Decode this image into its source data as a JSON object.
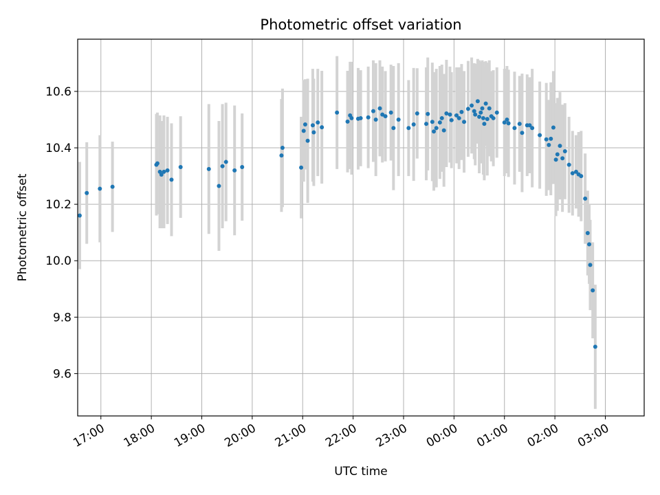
{
  "chart_data": {
    "type": "scatter",
    "title": "Photometric offset variation",
    "xlabel": "UTC time",
    "ylabel": "Photometric offset",
    "grid": true,
    "x_range_hours": [
      16.54,
      27.77
    ],
    "y_range": [
      9.45,
      10.785
    ],
    "x_ticks": [
      {
        "t": 17,
        "label": "17:00"
      },
      {
        "t": 18,
        "label": "18:00"
      },
      {
        "t": 19,
        "label": "19:00"
      },
      {
        "t": 20,
        "label": "20:00"
      },
      {
        "t": 21,
        "label": "21:00"
      },
      {
        "t": 22,
        "label": "22:00"
      },
      {
        "t": 23,
        "label": "23:00"
      },
      {
        "t": 24,
        "label": "00:00"
      },
      {
        "t": 25,
        "label": "01:00"
      },
      {
        "t": 26,
        "label": "02:00"
      },
      {
        "t": 27,
        "label": "03:00"
      }
    ],
    "y_ticks": [
      {
        "v": 9.6,
        "label": "9.6"
      },
      {
        "v": 9.8,
        "label": "9.8"
      },
      {
        "v": 10.0,
        "label": "10.0"
      },
      {
        "v": 10.2,
        "label": "10.2"
      },
      {
        "v": 10.4,
        "label": "10.4"
      },
      {
        "v": 10.6,
        "label": "10.6"
      }
    ],
    "colors": {
      "points": "#1f77b4",
      "errorbars": "#d3d3d3",
      "grid": "#b0b0b0"
    },
    "series": [
      {
        "name": "offset",
        "x_unit": "hours UTC (values above 24 are after midnight)",
        "points": [
          [
            16.58,
            10.16,
            0.19
          ],
          [
            16.72,
            10.24,
            0.18
          ],
          [
            16.98,
            10.255,
            0.19
          ],
          [
            17.23,
            10.262,
            0.16
          ],
          [
            18.1,
            10.34,
            0.18
          ],
          [
            18.12,
            10.345,
            0.18
          ],
          [
            18.17,
            10.315,
            0.2
          ],
          [
            18.2,
            10.305,
            0.19
          ],
          [
            18.25,
            10.315,
            0.2
          ],
          [
            18.32,
            10.32,
            0.19
          ],
          [
            18.4,
            10.287,
            0.2
          ],
          [
            18.58,
            10.332,
            0.18
          ],
          [
            19.14,
            10.325,
            0.23
          ],
          [
            19.34,
            10.265,
            0.23
          ],
          [
            19.41,
            10.335,
            0.22
          ],
          [
            19.48,
            10.35,
            0.21
          ],
          [
            19.65,
            10.32,
            0.23
          ],
          [
            19.8,
            10.332,
            0.19
          ],
          [
            20.58,
            10.373,
            0.2
          ],
          [
            20.6,
            10.4,
            0.21
          ],
          [
            20.97,
            10.33,
            0.18
          ],
          [
            21.02,
            10.46,
            0.18
          ],
          [
            21.05,
            10.483,
            0.16
          ],
          [
            21.1,
            10.425,
            0.22
          ],
          [
            21.2,
            10.48,
            0.2
          ],
          [
            21.22,
            10.455,
            0.19
          ],
          [
            21.3,
            10.49,
            0.19
          ],
          [
            21.38,
            10.473,
            0.2
          ],
          [
            21.68,
            10.525,
            0.2
          ],
          [
            21.89,
            10.493,
            0.18
          ],
          [
            21.94,
            10.515,
            0.19
          ],
          [
            21.97,
            10.505,
            0.2
          ],
          [
            22.1,
            10.503,
            0.18
          ],
          [
            22.15,
            10.505,
            0.17
          ],
          [
            22.3,
            10.508,
            0.18
          ],
          [
            22.4,
            10.53,
            0.18
          ],
          [
            22.45,
            10.5,
            0.2
          ],
          [
            22.53,
            10.54,
            0.17
          ],
          [
            22.58,
            10.518,
            0.17
          ],
          [
            22.64,
            10.512,
            0.16
          ],
          [
            22.75,
            10.525,
            0.17
          ],
          [
            22.8,
            10.47,
            0.22
          ],
          [
            22.9,
            10.5,
            0.2
          ],
          [
            23.1,
            10.47,
            0.17
          ],
          [
            23.2,
            10.483,
            0.2
          ],
          [
            23.27,
            10.522,
            0.16
          ],
          [
            23.45,
            10.485,
            0.2
          ],
          [
            23.48,
            10.52,
            0.2
          ],
          [
            23.57,
            10.492,
            0.21
          ],
          [
            23.6,
            10.458,
            0.21
          ],
          [
            23.65,
            10.47,
            0.21
          ],
          [
            23.72,
            10.49,
            0.2
          ],
          [
            23.76,
            10.505,
            0.19
          ],
          [
            23.8,
            10.462,
            0.2
          ],
          [
            23.85,
            10.522,
            0.19
          ],
          [
            23.92,
            10.518,
            0.17
          ],
          [
            23.95,
            10.498,
            0.17
          ],
          [
            24.05,
            10.515,
            0.17
          ],
          [
            24.1,
            10.505,
            0.18
          ],
          [
            24.15,
            10.527,
            0.17
          ],
          [
            24.2,
            10.492,
            0.18
          ],
          [
            24.28,
            10.538,
            0.17
          ],
          [
            24.35,
            10.55,
            0.17
          ],
          [
            24.4,
            10.53,
            0.17
          ],
          [
            24.42,
            10.518,
            0.18
          ],
          [
            24.47,
            10.565,
            0.15
          ],
          [
            24.5,
            10.51,
            0.2
          ],
          [
            24.53,
            10.525,
            0.18
          ],
          [
            24.56,
            10.54,
            0.17
          ],
          [
            24.58,
            10.505,
            0.2
          ],
          [
            24.6,
            10.485,
            0.2
          ],
          [
            24.63,
            10.557,
            0.15
          ],
          [
            24.66,
            10.502,
            0.2
          ],
          [
            24.7,
            10.54,
            0.17
          ],
          [
            24.74,
            10.512,
            0.16
          ],
          [
            24.78,
            10.505,
            0.17
          ],
          [
            24.85,
            10.525,
            0.16
          ],
          [
            25.0,
            10.49,
            0.19
          ],
          [
            25.05,
            10.5,
            0.19
          ],
          [
            25.08,
            10.487,
            0.19
          ],
          [
            25.2,
            10.47,
            0.2
          ],
          [
            25.3,
            10.485,
            0.17
          ],
          [
            25.35,
            10.453,
            0.21
          ],
          [
            25.45,
            10.48,
            0.18
          ],
          [
            25.5,
            10.48,
            0.17
          ],
          [
            25.55,
            10.47,
            0.21
          ],
          [
            25.7,
            10.445,
            0.19
          ],
          [
            25.83,
            10.43,
            0.2
          ],
          [
            25.88,
            10.41,
            0.16
          ],
          [
            25.92,
            10.432,
            0.2
          ],
          [
            25.97,
            10.472,
            0.2
          ],
          [
            26.02,
            10.358,
            0.2
          ],
          [
            26.05,
            10.377,
            0.2
          ],
          [
            26.1,
            10.407,
            0.19
          ],
          [
            26.15,
            10.363,
            0.19
          ],
          [
            26.2,
            10.388,
            0.17
          ],
          [
            26.28,
            10.34,
            0.17
          ],
          [
            26.35,
            10.31,
            0.15
          ],
          [
            26.42,
            10.315,
            0.13
          ],
          [
            26.47,
            10.306,
            0.15
          ],
          [
            26.52,
            10.3,
            0.16
          ],
          [
            26.6,
            10.22,
            0.16
          ],
          [
            26.65,
            10.098,
            0.15
          ],
          [
            26.68,
            10.058,
            0.14
          ],
          [
            26.7,
            9.985,
            0.16
          ],
          [
            26.75,
            9.895,
            0.17
          ],
          [
            26.8,
            9.695,
            0.22
          ]
        ]
      }
    ]
  }
}
